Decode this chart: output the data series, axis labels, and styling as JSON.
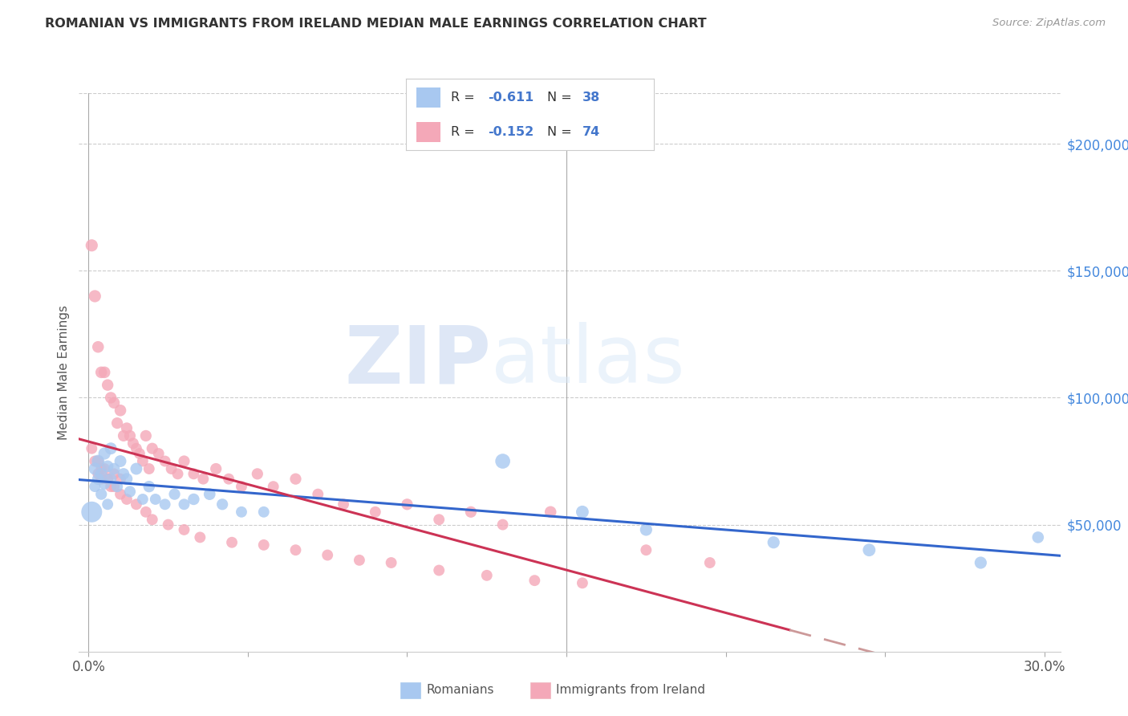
{
  "title": "ROMANIAN VS IMMIGRANTS FROM IRELAND MEDIAN MALE EARNINGS CORRELATION CHART",
  "source": "Source: ZipAtlas.com",
  "ylabel": "Median Male Earnings",
  "ytick_labels": [
    "$50,000",
    "$100,000",
    "$150,000",
    "$200,000"
  ],
  "ytick_vals": [
    50000,
    100000,
    150000,
    200000
  ],
  "ylim": [
    0,
    220000
  ],
  "xlim": [
    -0.003,
    0.305
  ],
  "blue_R": -0.611,
  "blue_N": 38,
  "pink_R": -0.152,
  "pink_N": 74,
  "blue_color": "#a8c8f0",
  "pink_color": "#f4a8b8",
  "blue_line_color": "#3366cc",
  "pink_line_color": "#cc3355",
  "pink_dash_color": "#cc9999",
  "watermark_zip": "ZIP",
  "watermark_atlas": "atlas",
  "blue_points_x": [
    0.001,
    0.002,
    0.002,
    0.003,
    0.003,
    0.004,
    0.004,
    0.005,
    0.005,
    0.006,
    0.006,
    0.007,
    0.007,
    0.008,
    0.009,
    0.01,
    0.011,
    0.012,
    0.013,
    0.015,
    0.017,
    0.019,
    0.021,
    0.024,
    0.027,
    0.03,
    0.033,
    0.038,
    0.042,
    0.048,
    0.055,
    0.13,
    0.155,
    0.175,
    0.215,
    0.245,
    0.28,
    0.298
  ],
  "blue_points_y": [
    55000,
    72000,
    65000,
    68000,
    75000,
    70000,
    62000,
    78000,
    66000,
    73000,
    58000,
    80000,
    68000,
    72000,
    65000,
    75000,
    70000,
    68000,
    63000,
    72000,
    60000,
    65000,
    60000,
    58000,
    62000,
    58000,
    60000,
    62000,
    58000,
    55000,
    55000,
    75000,
    55000,
    48000,
    43000,
    40000,
    35000,
    45000
  ],
  "blue_sizes": [
    350,
    120,
    100,
    110,
    130,
    115,
    105,
    120,
    100,
    110,
    100,
    115,
    105,
    110,
    105,
    115,
    108,
    110,
    105,
    115,
    100,
    108,
    100,
    100,
    105,
    100,
    108,
    112,
    105,
    100,
    100,
    180,
    130,
    120,
    120,
    130,
    120,
    110
  ],
  "pink_points_x": [
    0.001,
    0.001,
    0.002,
    0.002,
    0.003,
    0.003,
    0.004,
    0.004,
    0.005,
    0.005,
    0.006,
    0.006,
    0.007,
    0.007,
    0.008,
    0.008,
    0.009,
    0.01,
    0.01,
    0.011,
    0.012,
    0.013,
    0.014,
    0.015,
    0.016,
    0.017,
    0.018,
    0.019,
    0.02,
    0.022,
    0.024,
    0.026,
    0.028,
    0.03,
    0.033,
    0.036,
    0.04,
    0.044,
    0.048,
    0.053,
    0.058,
    0.065,
    0.072,
    0.08,
    0.09,
    0.1,
    0.11,
    0.12,
    0.13,
    0.145,
    0.003,
    0.004,
    0.006,
    0.008,
    0.01,
    0.012,
    0.015,
    0.018,
    0.02,
    0.025,
    0.03,
    0.035,
    0.045,
    0.055,
    0.065,
    0.075,
    0.085,
    0.095,
    0.11,
    0.125,
    0.14,
    0.155,
    0.175,
    0.195
  ],
  "pink_points_y": [
    160000,
    80000,
    140000,
    75000,
    120000,
    70000,
    110000,
    68000,
    110000,
    72000,
    105000,
    68000,
    100000,
    65000,
    98000,
    70000,
    90000,
    95000,
    68000,
    85000,
    88000,
    85000,
    82000,
    80000,
    78000,
    75000,
    85000,
    72000,
    80000,
    78000,
    75000,
    72000,
    70000,
    75000,
    70000,
    68000,
    72000,
    68000,
    65000,
    70000,
    65000,
    68000,
    62000,
    58000,
    55000,
    58000,
    52000,
    55000,
    50000,
    55000,
    75000,
    72000,
    68000,
    65000,
    62000,
    60000,
    58000,
    55000,
    52000,
    50000,
    48000,
    45000,
    43000,
    42000,
    40000,
    38000,
    36000,
    35000,
    32000,
    30000,
    28000,
    27000,
    40000,
    35000
  ],
  "pink_sizes": [
    120,
    100,
    120,
    100,
    110,
    100,
    110,
    100,
    110,
    100,
    108,
    100,
    108,
    100,
    108,
    100,
    105,
    110,
    100,
    105,
    105,
    105,
    102,
    100,
    100,
    100,
    105,
    100,
    105,
    100,
    100,
    100,
    100,
    105,
    100,
    100,
    105,
    100,
    100,
    105,
    100,
    105,
    100,
    100,
    100,
    105,
    100,
    105,
    100,
    110,
    100,
    100,
    100,
    100,
    100,
    100,
    100,
    100,
    100,
    100,
    100,
    100,
    100,
    100,
    100,
    100,
    100,
    100,
    100,
    100,
    100,
    100,
    100,
    100
  ]
}
